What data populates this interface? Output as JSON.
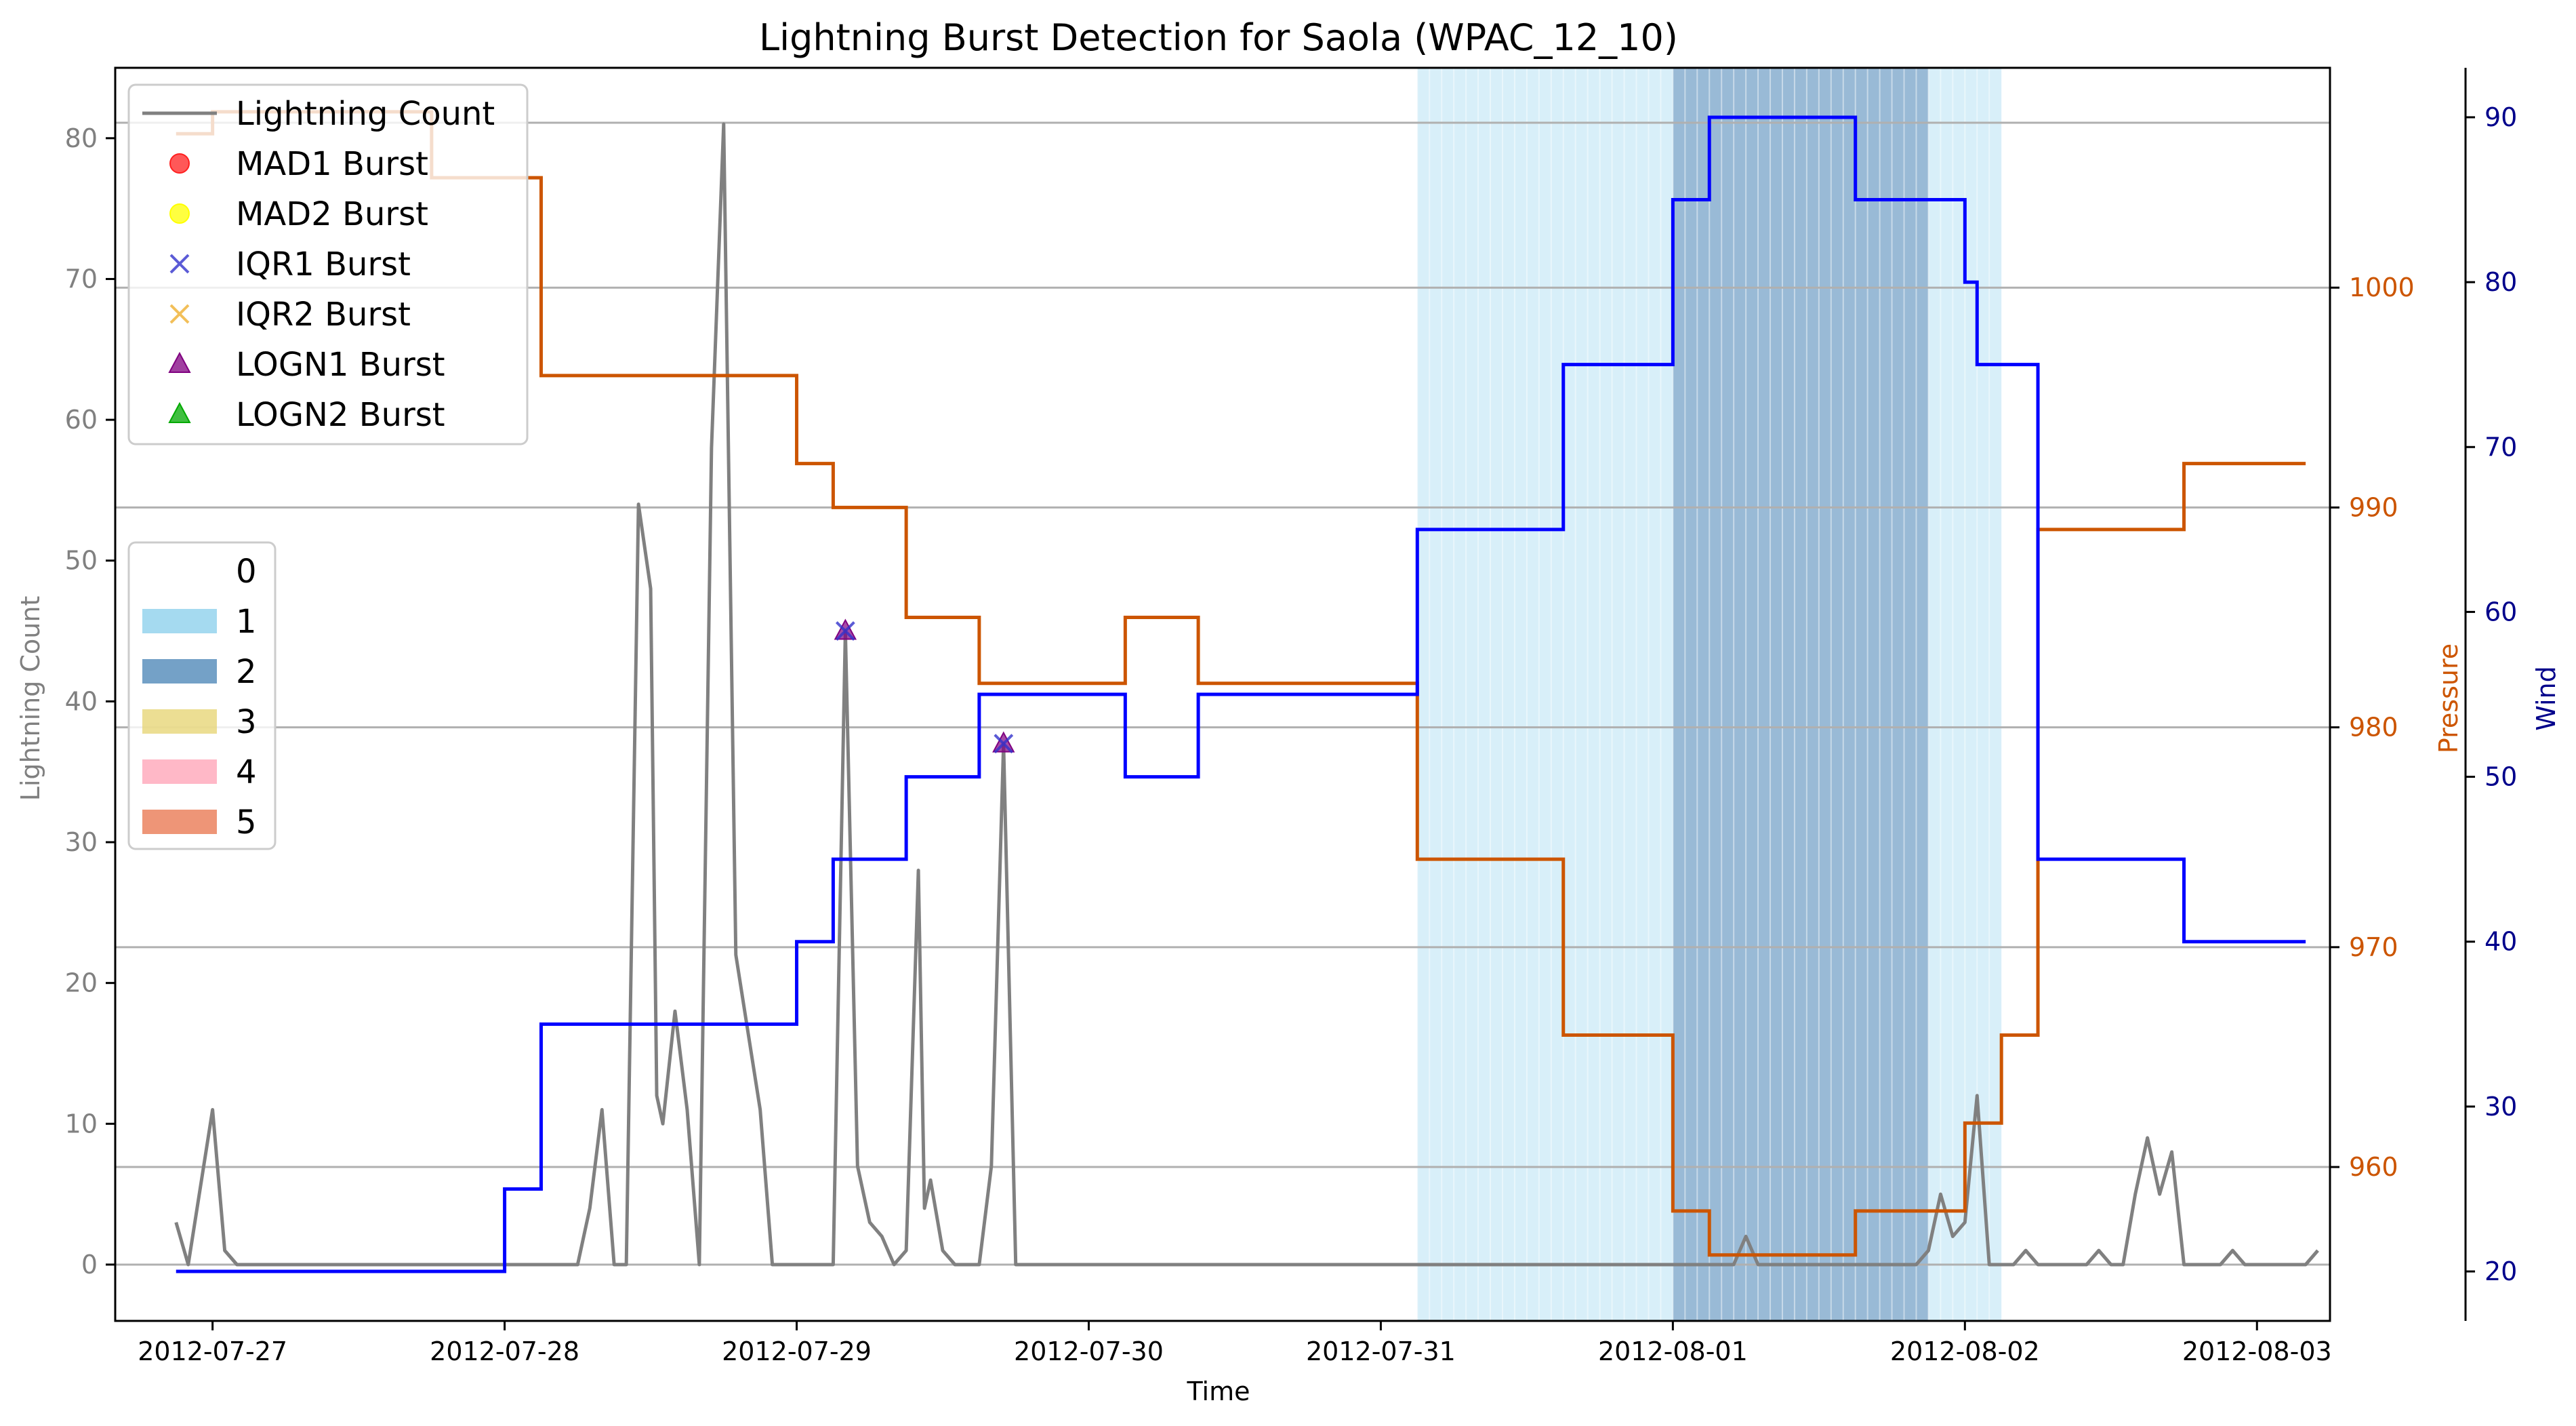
{
  "chart_data": {
    "type": "line",
    "title": "Lightning Burst Detection for Saola (WPAC_12_10)",
    "xlabel": "Time",
    "ylabel_left": "Lightning Count",
    "ylabel_right1": "Pressure",
    "ylabel_right2": "Wind",
    "x_ticks": [
      "2012-07-27",
      "2012-07-28",
      "2012-07-29",
      "2012-07-30",
      "2012-07-31",
      "2012-08-01",
      "2012-08-02",
      "2012-08-03"
    ],
    "xlim": [
      "2012-07-26 16:00",
      "2012-08-03 06:00"
    ],
    "ylim_left": [
      -4,
      85
    ],
    "ylim_pressure": [
      953,
      1010
    ],
    "ylim_wind": [
      17,
      93
    ],
    "yticks_left": [
      0,
      10,
      20,
      30,
      40,
      50,
      60,
      70,
      80
    ],
    "yticks_pressure": [
      960,
      970,
      980,
      990,
      1000
    ],
    "yticks_wind": [
      20,
      30,
      40,
      50,
      60,
      70,
      80,
      90
    ],
    "grid": "horizontal (pressure axis)",
    "legend_series_position": "upper-left",
    "legend_category_position": "center-left",
    "colors": {
      "lightning": "#808080",
      "pressure": "#cc5500",
      "wind": "#0000ff",
      "cat1": "#87ceeb",
      "cat2": "#4682b4",
      "cat3": "#e6d36f",
      "cat4": "#ffa0b4",
      "cat5": "#e8724a",
      "mad1": "#ff2020",
      "mad2": "#ffff00",
      "iqr1": "#3333cc",
      "iqr2": "#f0b030",
      "logn1": "#800080",
      "logn2": "#00aa00",
      "left_axis": "#808080",
      "pressure_axis": "#cc5500",
      "wind_axis": "#00008b"
    },
    "legend_series": [
      {
        "label": "Lightning Count",
        "marker": "line",
        "color": "#808080"
      },
      {
        "label": "MAD1 Burst",
        "marker": "circle",
        "color": "#ff2020"
      },
      {
        "label": "MAD2 Burst",
        "marker": "circle",
        "color": "#ffff00"
      },
      {
        "label": "IQR1 Burst",
        "marker": "x",
        "color": "#3333cc"
      },
      {
        "label": "IQR2 Burst",
        "marker": "x",
        "color": "#f0b030"
      },
      {
        "label": "LOGN1 Burst",
        "marker": "triangle",
        "color": "#800080"
      },
      {
        "label": "LOGN2 Burst",
        "marker": "triangle",
        "color": "#00aa00"
      }
    ],
    "legend_categories": [
      {
        "label": "0",
        "color": "#ffffff"
      },
      {
        "label": "1",
        "color": "#87ceeb"
      },
      {
        "label": "2",
        "color": "#4682b4"
      },
      {
        "label": "3",
        "color": "#e6d36f"
      },
      {
        "label": "4",
        "color": "#ffa0b4"
      },
      {
        "label": "5",
        "color": "#e8724a"
      }
    ],
    "category_spans": [
      {
        "category": 1,
        "start": "2012-07-31 03:00",
        "end": "2012-08-01 00:00"
      },
      {
        "category": 2,
        "start": "2012-08-01 00:00",
        "end": "2012-08-01 21:00"
      },
      {
        "category": 1,
        "start": "2012-08-01 21:00",
        "end": "2012-08-02 03:00"
      }
    ],
    "series": [
      {
        "name": "Lightning Count",
        "axis": "left",
        "points": [
          [
            "2012-07-26 21:00",
            3
          ],
          [
            "2012-07-26 22:00",
            0
          ],
          [
            "2012-07-27 00:00",
            11
          ],
          [
            "2012-07-27 01:00",
            1
          ],
          [
            "2012-07-27 02:00",
            0
          ],
          [
            "2012-07-28 06:00",
            0
          ],
          [
            "2012-07-28 07:00",
            4
          ],
          [
            "2012-07-28 08:00",
            11
          ],
          [
            "2012-07-28 09:00",
            0
          ],
          [
            "2012-07-28 10:00",
            0
          ],
          [
            "2012-07-28 11:00",
            54
          ],
          [
            "2012-07-28 12:00",
            48
          ],
          [
            "2012-07-28 12:30",
            12
          ],
          [
            "2012-07-28 13:00",
            10
          ],
          [
            "2012-07-28 14:00",
            18
          ],
          [
            "2012-07-28 15:00",
            11
          ],
          [
            "2012-07-28 16:00",
            0
          ],
          [
            "2012-07-28 17:00",
            58
          ],
          [
            "2012-07-28 18:00",
            81
          ],
          [
            "2012-07-28 19:00",
            22
          ],
          [
            "2012-07-28 21:00",
            11
          ],
          [
            "2012-07-28 22:00",
            0
          ],
          [
            "2012-07-29 03:00",
            0
          ],
          [
            "2012-07-29 04:00",
            45
          ],
          [
            "2012-07-29 05:00",
            7
          ],
          [
            "2012-07-29 06:00",
            3
          ],
          [
            "2012-07-29 07:00",
            2
          ],
          [
            "2012-07-29 08:00",
            0
          ],
          [
            "2012-07-29 09:00",
            1
          ],
          [
            "2012-07-29 10:00",
            28
          ],
          [
            "2012-07-29 10:30",
            4
          ],
          [
            "2012-07-29 11:00",
            6
          ],
          [
            "2012-07-29 12:00",
            1
          ],
          [
            "2012-07-29 13:00",
            0
          ],
          [
            "2012-07-29 15:00",
            0
          ],
          [
            "2012-07-29 16:00",
            7
          ],
          [
            "2012-07-29 17:00",
            37
          ],
          [
            "2012-07-29 18:00",
            0
          ],
          [
            "2012-08-01 05:00",
            0
          ],
          [
            "2012-08-01 06:00",
            2
          ],
          [
            "2012-08-01 07:00",
            0
          ],
          [
            "2012-08-01 20:00",
            0
          ],
          [
            "2012-08-01 21:00",
            1
          ],
          [
            "2012-08-01 22:00",
            5
          ],
          [
            "2012-08-01 23:00",
            2
          ],
          [
            "2012-08-02 00:00",
            3
          ],
          [
            "2012-08-02 01:00",
            12
          ],
          [
            "2012-08-02 02:00",
            0
          ],
          [
            "2012-08-02 04:00",
            0
          ],
          [
            "2012-08-02 05:00",
            1
          ],
          [
            "2012-08-02 06:00",
            0
          ],
          [
            "2012-08-02 10:00",
            0
          ],
          [
            "2012-08-02 11:00",
            1
          ],
          [
            "2012-08-02 12:00",
            0
          ],
          [
            "2012-08-02 13:00",
            0
          ],
          [
            "2012-08-02 14:00",
            5
          ],
          [
            "2012-08-02 15:00",
            9
          ],
          [
            "2012-08-02 16:00",
            5
          ],
          [
            "2012-08-02 17:00",
            8
          ],
          [
            "2012-08-02 18:00",
            0
          ],
          [
            "2012-08-02 21:00",
            0
          ],
          [
            "2012-08-02 22:00",
            1
          ],
          [
            "2012-08-02 23:00",
            0
          ],
          [
            "2012-08-03 04:00",
            0
          ],
          [
            "2012-08-03 05:00",
            1
          ]
        ]
      },
      {
        "name": "Pressure",
        "axis": "pressure",
        "step": true,
        "points": [
          [
            "2012-07-26 21:00",
            1007
          ],
          [
            "2012-07-27 00:00",
            1008
          ],
          [
            "2012-07-27 18:00",
            1005
          ],
          [
            "2012-07-28 03:00",
            996
          ],
          [
            "2012-07-29 00:00",
            992
          ],
          [
            "2012-07-29 03:00",
            990
          ],
          [
            "2012-07-29 09:00",
            985
          ],
          [
            "2012-07-29 15:00",
            982
          ],
          [
            "2012-07-30 03:00",
            985
          ],
          [
            "2012-07-30 09:00",
            982
          ],
          [
            "2012-07-31 03:00",
            974
          ],
          [
            "2012-07-31 15:00",
            966
          ],
          [
            "2012-08-01 00:00",
            958
          ],
          [
            "2012-08-01 03:00",
            956
          ],
          [
            "2012-08-01 15:00",
            958
          ],
          [
            "2012-08-02 00:00",
            962
          ],
          [
            "2012-08-02 03:00",
            966
          ],
          [
            "2012-08-02 06:00",
            989
          ],
          [
            "2012-08-02 18:00",
            992
          ],
          [
            "2012-08-03 04:00",
            992
          ]
        ]
      },
      {
        "name": "Wind",
        "axis": "wind",
        "step": true,
        "points": [
          [
            "2012-07-26 21:00",
            20
          ],
          [
            "2012-07-28 00:00",
            25
          ],
          [
            "2012-07-28 03:00",
            35
          ],
          [
            "2012-07-29 00:00",
            40
          ],
          [
            "2012-07-29 03:00",
            45
          ],
          [
            "2012-07-29 09:00",
            50
          ],
          [
            "2012-07-29 15:00",
            55
          ],
          [
            "2012-07-30 03:00",
            50
          ],
          [
            "2012-07-30 09:00",
            55
          ],
          [
            "2012-07-31 03:00",
            65
          ],
          [
            "2012-07-31 15:00",
            75
          ],
          [
            "2012-08-01 00:00",
            85
          ],
          [
            "2012-08-01 03:00",
            90
          ],
          [
            "2012-08-01 15:00",
            85
          ],
          [
            "2012-08-02 00:00",
            80
          ],
          [
            "2012-08-02 01:00",
            75
          ],
          [
            "2012-08-02 06:00",
            45
          ],
          [
            "2012-08-02 18:00",
            40
          ],
          [
            "2012-08-03 04:00",
            40
          ]
        ]
      }
    ],
    "bursts": [
      {
        "time": "2012-07-29 04:00",
        "value": 45,
        "types": [
          "IQR1 Burst",
          "LOGN1 Burst"
        ]
      },
      {
        "time": "2012-07-29 17:00",
        "value": 37,
        "types": [
          "IQR1 Burst",
          "LOGN1 Burst"
        ]
      }
    ]
  }
}
